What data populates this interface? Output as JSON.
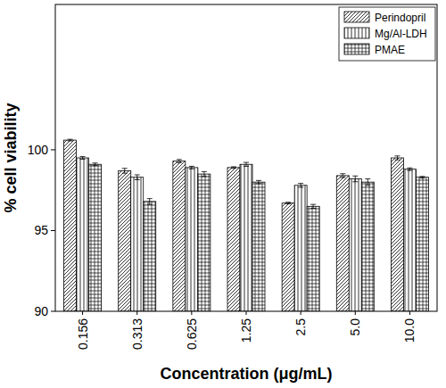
{
  "chart_data": {
    "type": "bar",
    "x_label": "Concentration (μg/mL)",
    "y_label": "% cell viability",
    "categories": [
      "0.156",
      "0.313",
      "0.625",
      "1.25",
      "2.5",
      "5.0",
      "10.0"
    ],
    "series": [
      {
        "name": "Perindopril",
        "color": "#000000",
        "values": [
          100.6,
          98.7,
          99.3,
          98.9,
          96.7,
          98.4,
          99.5
        ],
        "errors": [
          0.05,
          0.15,
          0.1,
          0.05,
          0.05,
          0.12,
          0.12
        ]
      },
      {
        "name": "Mg/Al-LDH",
        "color": "#000000",
        "values": [
          99.5,
          98.3,
          98.9,
          99.1,
          97.8,
          98.2,
          98.8
        ],
        "errors": [
          0.08,
          0.15,
          0.08,
          0.12,
          0.12,
          0.18,
          0.08
        ]
      },
      {
        "name": "PMAE",
        "color": "#000000",
        "values": [
          99.1,
          96.8,
          98.5,
          98.0,
          96.5,
          98.0,
          98.3
        ],
        "errors": [
          0.08,
          0.18,
          0.15,
          0.1,
          0.12,
          0.2,
          0.05
        ]
      }
    ],
    "ylim": [
      90,
      109
    ],
    "yticks": [
      90,
      95,
      100
    ],
    "legend": "upper right",
    "grid": false
  }
}
